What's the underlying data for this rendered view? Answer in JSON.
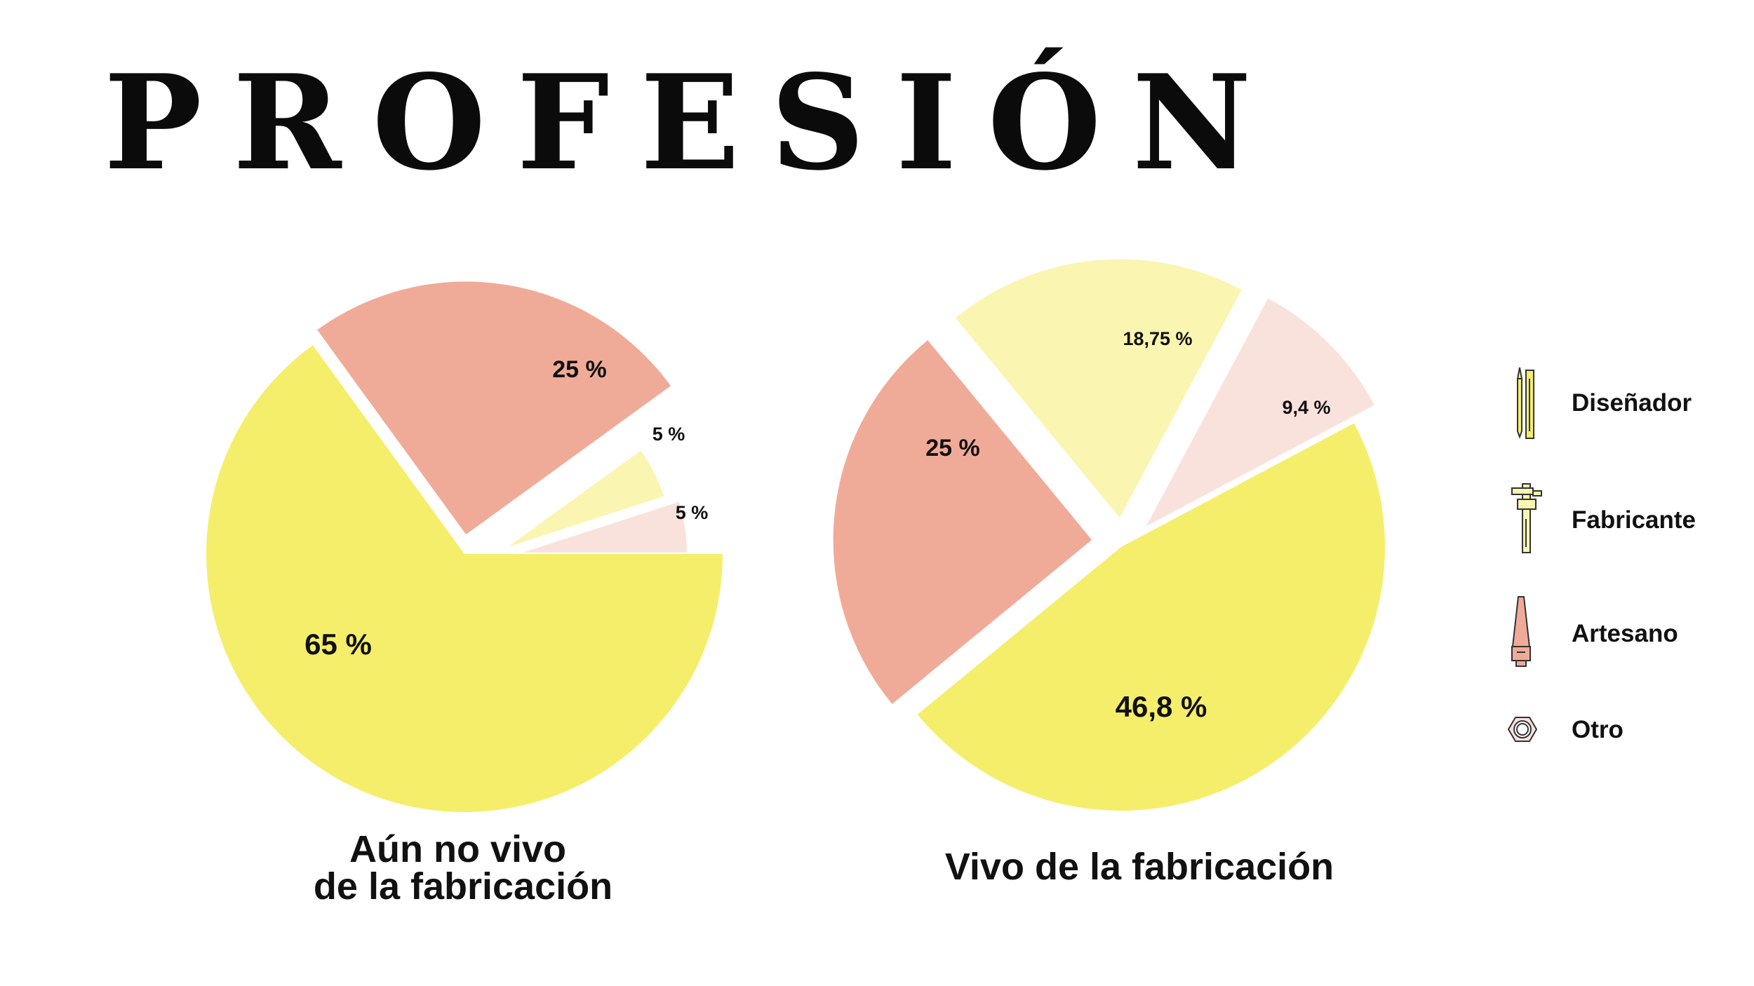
{
  "title": "PROFESIÓN",
  "colors": {
    "disenador": "#f5ee6b",
    "fabricante": "#faf5b0",
    "artesano": "#f0ab98",
    "otro": "#fae2dc"
  },
  "legend": [
    {
      "key": "disenador",
      "label": "Diseñador",
      "icon": "pencil-ruler-icon"
    },
    {
      "key": "fabricante",
      "label": "Fabricante",
      "icon": "caliper-icon"
    },
    {
      "key": "artesano",
      "label": "Artesano",
      "icon": "saw-icon"
    },
    {
      "key": "otro",
      "label": "Otro",
      "icon": "hex-nut-icon"
    }
  ],
  "chart_data": [
    {
      "type": "pie",
      "caption_lines": [
        "Aún no vivo",
        "de la fabricación"
      ],
      "slices": [
        {
          "category": "Diseñador",
          "key": "disenador",
          "value": 65,
          "label": "65 %"
        },
        {
          "category": "Artesano",
          "key": "artesano",
          "value": 25,
          "label": "25 %"
        },
        {
          "category": "Fabricante",
          "key": "fabricante",
          "value": 5,
          "label": "5 %"
        },
        {
          "category": "Otro",
          "key": "otro",
          "value": 5,
          "label": "5 %"
        }
      ]
    },
    {
      "type": "pie",
      "caption_lines": [
        "Vivo de la fabricación"
      ],
      "slices": [
        {
          "category": "Diseñador",
          "key": "disenador",
          "value": 46.8,
          "label": "46,8 %"
        },
        {
          "category": "Artesano",
          "key": "artesano",
          "value": 25,
          "label": "25 %"
        },
        {
          "category": "Fabricante",
          "key": "fabricante",
          "value": 18.75,
          "label": "18,75 %"
        },
        {
          "category": "Otro",
          "key": "otro",
          "value": 9.4,
          "label": "9,4 %"
        }
      ]
    }
  ]
}
